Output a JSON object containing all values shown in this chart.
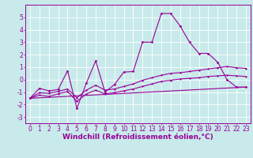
{
  "bg_color": "#c8eaea",
  "line_color": "#990099",
  "grid_color": "#ffffff",
  "xlabel": "Windchill (Refroidissement éolien,°C)",
  "xlabel_fontsize": 6.5,
  "tick_fontsize": 5.5,
  "xlim": [
    -0.5,
    23.5
  ],
  "ylim": [
    -3.5,
    6.0
  ],
  "yticks": [
    -3,
    -2,
    -1,
    0,
    1,
    2,
    3,
    4,
    5
  ],
  "xticks": [
    0,
    1,
    2,
    3,
    4,
    5,
    6,
    7,
    8,
    9,
    10,
    11,
    12,
    13,
    14,
    15,
    16,
    17,
    18,
    19,
    20,
    21,
    22,
    23
  ],
  "line0_x": [
    0,
    1,
    2,
    3,
    4,
    5,
    6,
    7,
    8,
    9,
    10,
    11,
    12,
    13,
    14,
    15,
    16,
    17,
    18,
    19,
    20,
    21,
    22,
    23
  ],
  "line0_y": [
    -1.5,
    -0.7,
    -0.9,
    -0.8,
    0.7,
    -2.3,
    -0.3,
    1.5,
    -1.0,
    -0.4,
    0.6,
    0.65,
    3.0,
    3.0,
    5.3,
    5.3,
    4.3,
    3.0,
    2.1,
    2.1,
    1.4,
    0.0,
    -0.6,
    -0.6
  ],
  "line1_x": [
    0,
    1,
    2,
    3,
    4,
    5,
    6,
    7,
    8,
    9,
    10,
    11,
    12,
    13,
    14,
    15,
    16,
    17,
    18,
    19,
    20,
    21,
    22,
    23
  ],
  "line1_y": [
    -1.5,
    -1.05,
    -1.1,
    -0.95,
    -0.75,
    -1.45,
    -0.85,
    -0.45,
    -0.85,
    -0.75,
    -0.55,
    -0.35,
    -0.05,
    0.15,
    0.35,
    0.5,
    0.55,
    0.65,
    0.75,
    0.85,
    0.95,
    1.05,
    0.95,
    0.9
  ],
  "line2_x": [
    0,
    1,
    2,
    3,
    4,
    5,
    6,
    7,
    8,
    9,
    10,
    11,
    12,
    13,
    14,
    15,
    16,
    17,
    18,
    19,
    20,
    21,
    22,
    23
  ],
  "line2_y": [
    -1.5,
    -1.25,
    -1.35,
    -1.15,
    -0.95,
    -1.75,
    -1.15,
    -0.85,
    -1.15,
    -1.05,
    -0.9,
    -0.75,
    -0.55,
    -0.35,
    -0.15,
    -0.05,
    0.05,
    0.1,
    0.15,
    0.25,
    0.3,
    0.35,
    0.3,
    0.25
  ],
  "line3_x": [
    0,
    23
  ],
  "line3_y": [
    -1.5,
    -0.6
  ]
}
